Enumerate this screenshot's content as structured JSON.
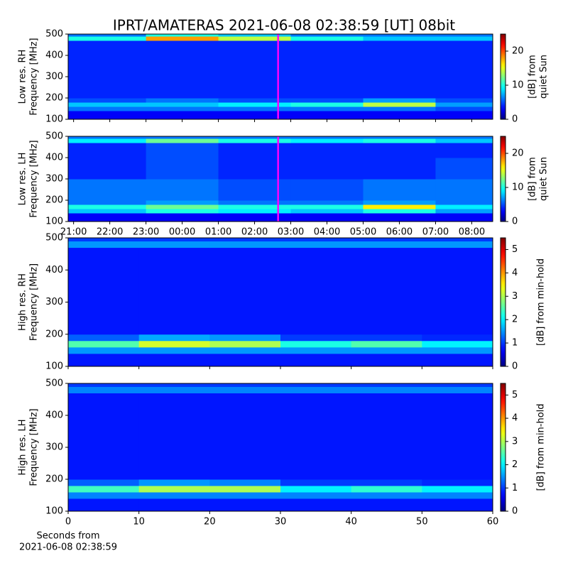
{
  "chart_data": [
    {
      "type": "heatmap",
      "title": "IPRT/AMATERAS 2021-06-08 02:38:59 [UT]   08bit",
      "ylabel": [
        "Low res. RH",
        "Frequency [MHz]"
      ],
      "colormap": "jet",
      "xlim": [
        20.85,
        32.58
      ],
      "xticks": [
        21,
        22,
        23,
        24,
        25,
        26,
        27,
        28,
        29,
        30,
        31,
        32
      ],
      "xtick_labels": false,
      "ylim": [
        100,
        500
      ],
      "yticks": [
        100,
        200,
        300,
        400,
        500
      ],
      "x_bins": [
        20.85,
        23,
        25,
        27,
        29,
        31,
        32.58
      ],
      "y_bins": [
        100,
        140,
        160,
        180,
        200,
        300,
        400,
        470,
        490,
        500
      ],
      "z": [
        [
          3,
          3,
          3,
          3,
          3,
          3
        ],
        [
          6,
          6,
          6,
          6,
          6,
          5
        ],
        [
          8,
          8,
          9,
          10,
          14,
          7
        ],
        [
          5,
          6,
          5,
          5,
          7,
          5
        ],
        [
          4,
          4,
          4,
          4,
          4,
          4
        ],
        [
          4,
          4,
          4,
          4,
          4,
          4
        ],
        [
          4,
          4,
          4,
          4,
          4,
          4
        ],
        [
          10,
          18,
          14,
          10,
          8,
          8
        ],
        [
          6,
          10,
          8,
          6,
          6,
          6
        ]
      ],
      "vline": 26.65,
      "vline_color": "#ff00ff",
      "clim": [
        0,
        25
      ],
      "cticks": [
        0,
        10,
        20
      ],
      "clabel": [
        "[dB] from",
        "quiet Sun"
      ]
    },
    {
      "type": "heatmap",
      "ylabel": [
        "Low res. LH",
        "Frequency [MHz]"
      ],
      "colormap": "jet",
      "xlim": [
        20.85,
        32.58
      ],
      "xticks": [
        {
          "value": 21,
          "label": "21:00"
        },
        {
          "value": 22,
          "label": "22:00"
        },
        {
          "value": 23,
          "label": "23:00"
        },
        {
          "value": 24,
          "label": "00:00"
        },
        {
          "value": 25,
          "label": "01:00"
        },
        {
          "value": 26,
          "label": "02:00"
        },
        {
          "value": 27,
          "label": "03:00"
        },
        {
          "value": 28,
          "label": "04:00"
        },
        {
          "value": 29,
          "label": "05:00"
        },
        {
          "value": 30,
          "label": "06:00"
        },
        {
          "value": 31,
          "label": "07:00"
        },
        {
          "value": 32,
          "label": "08:00"
        }
      ],
      "ylim": [
        100,
        500
      ],
      "yticks": [
        100,
        200,
        300,
        400,
        500
      ],
      "x_bins": [
        20.85,
        23,
        25,
        27,
        29,
        31,
        32.58
      ],
      "y_bins": [
        100,
        140,
        160,
        180,
        200,
        300,
        400,
        470,
        490,
        500
      ],
      "z": [
        [
          3,
          3,
          3,
          3,
          3,
          3
        ],
        [
          8,
          10,
          9,
          8,
          10,
          7
        ],
        [
          10,
          12,
          10,
          10,
          16,
          9
        ],
        [
          6,
          7,
          6,
          6,
          7,
          6
        ],
        [
          6,
          6,
          5,
          5,
          6,
          6
        ],
        [
          4,
          5,
          4,
          4,
          4,
          5
        ],
        [
          4,
          5,
          4,
          4,
          4,
          4
        ],
        [
          9,
          12,
          10,
          9,
          10,
          8
        ],
        [
          6,
          6,
          6,
          6,
          6,
          6
        ]
      ],
      "vline": 26.65,
      "vline_color": "#ff00ff",
      "clim": [
        0,
        25
      ],
      "cticks": [
        0,
        10,
        20
      ],
      "clabel": [
        "[dB] from",
        "quiet Sun"
      ]
    },
    {
      "type": "heatmap",
      "ylabel": [
        "High res. RH",
        "Frequency [MHz]"
      ],
      "colormap": "jet",
      "xlim": [
        0,
        60
      ],
      "xticks": [
        0,
        10,
        20,
        30,
        40,
        50,
        60
      ],
      "xtick_labels": false,
      "ylim": [
        100,
        500
      ],
      "yticks": [
        100,
        200,
        300,
        400,
        500
      ],
      "x_bins": [
        0,
        10,
        20,
        30,
        40,
        50,
        60
      ],
      "y_bins": [
        100,
        140,
        160,
        180,
        200,
        470,
        490,
        500
      ],
      "z": [
        [
          0.8,
          0.8,
          0.8,
          0.8,
          0.8,
          0.8
        ],
        [
          1.5,
          1.5,
          1.5,
          1.5,
          1.5,
          1.5
        ],
        [
          2.5,
          3.2,
          3,
          2.2,
          2.5,
          2
        ],
        [
          1.2,
          1.6,
          1.5,
          1,
          1,
          0.9
        ],
        [
          0.8,
          0.8,
          0.8,
          0.8,
          0.8,
          0.8
        ],
        [
          1.5,
          1.5,
          1.5,
          1.5,
          1.5,
          1.5
        ],
        [
          1,
          1,
          1,
          1,
          1,
          1
        ]
      ],
      "clim": [
        0,
        5.5
      ],
      "cticks": [
        0,
        1,
        2,
        3,
        4,
        5
      ],
      "clabel": [
        "[dB] from min-hold"
      ]
    },
    {
      "type": "heatmap",
      "ylabel": [
        "High res. LH",
        "Frequency [MHz]"
      ],
      "colormap": "jet",
      "xlim": [
        0,
        60
      ],
      "xticks": [
        0,
        10,
        20,
        30,
        40,
        50,
        60
      ],
      "xlabel": [
        "Seconds from",
        "2021-06-08 02:38:59"
      ],
      "ylim": [
        100,
        500
      ],
      "yticks": [
        100,
        200,
        300,
        400,
        500
      ],
      "x_bins": [
        0,
        10,
        20,
        30,
        40,
        50,
        60
      ],
      "y_bins": [
        100,
        140,
        160,
        180,
        200,
        470,
        490,
        500
      ],
      "z": [
        [
          0.8,
          0.8,
          0.8,
          0.8,
          0.8,
          0.8
        ],
        [
          1.4,
          1.4,
          1.4,
          1.4,
          1.4,
          1.4
        ],
        [
          2.4,
          3,
          3,
          2,
          2.3,
          2
        ],
        [
          1.2,
          1.5,
          1.4,
          1,
          1,
          0.9
        ],
        [
          0.8,
          0.8,
          0.8,
          0.8,
          0.8,
          0.8
        ],
        [
          1.4,
          1.4,
          1.4,
          1.4,
          1.4,
          1.4
        ],
        [
          1,
          1,
          1,
          1,
          1,
          1
        ]
      ],
      "clim": [
        0,
        5.5
      ],
      "cticks": [
        0,
        1,
        2,
        3,
        4,
        5
      ],
      "clabel": [
        "[dB] from min-hold"
      ]
    }
  ]
}
